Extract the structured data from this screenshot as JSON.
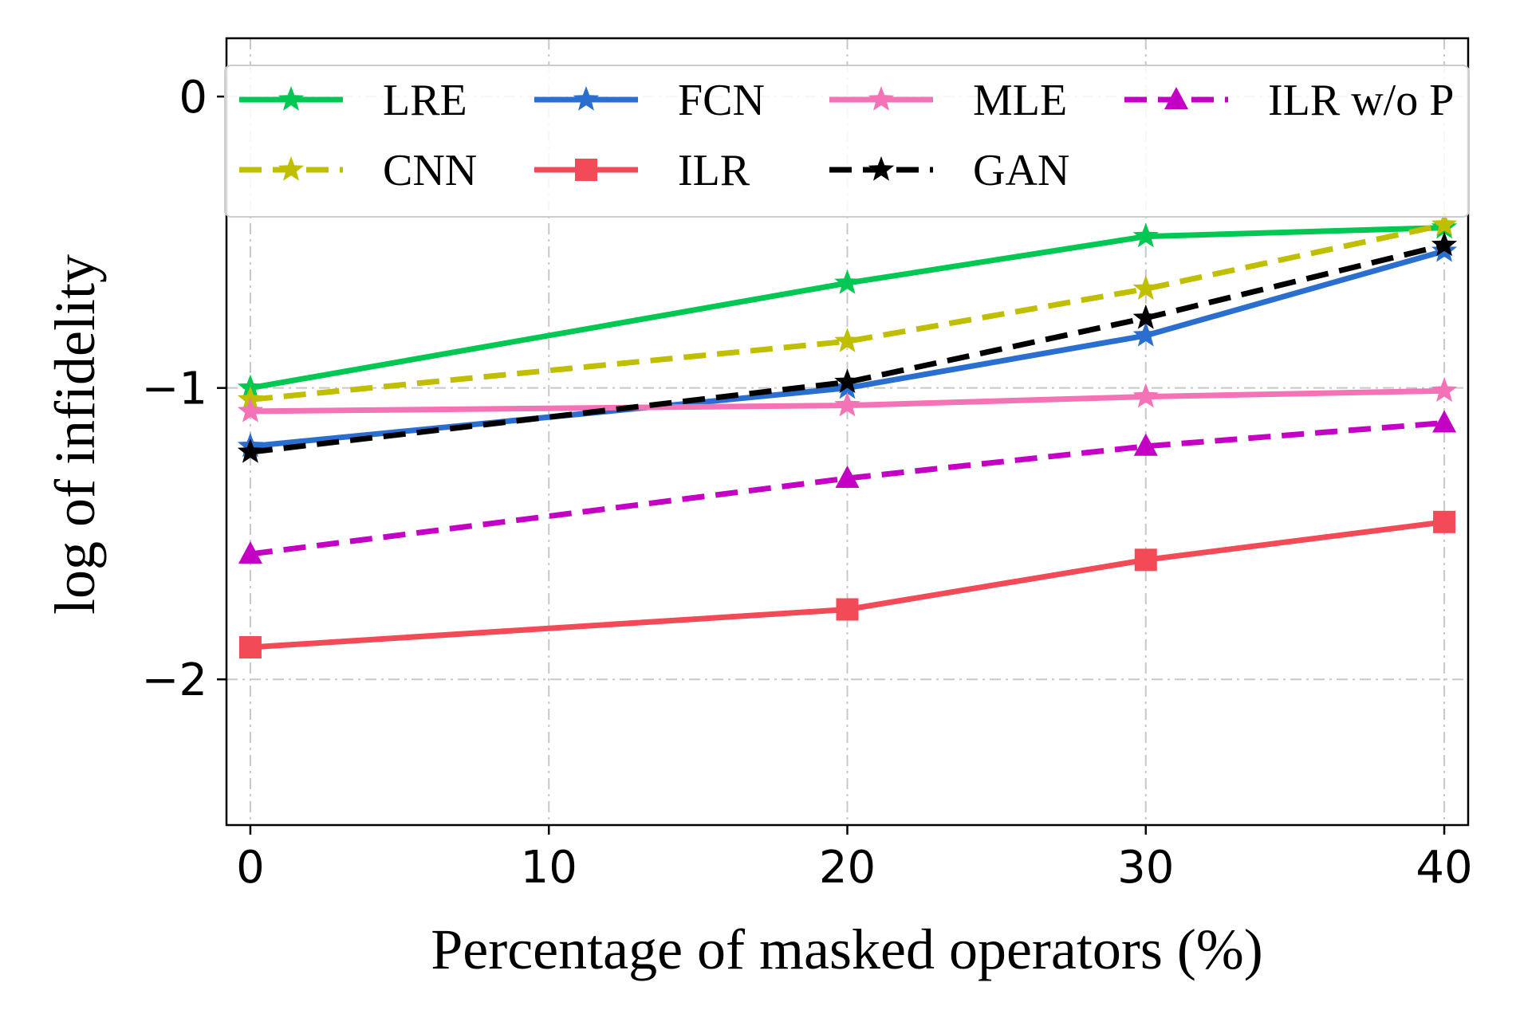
{
  "chart_data": {
    "type": "line",
    "title": "",
    "xlabel": "Percentage of masked operators (%)",
    "ylabel": "log of infidelity",
    "xlim": [
      -0.8,
      40.8
    ],
    "ylim": [
      -2.5,
      0.2
    ],
    "xticks": [
      0,
      10,
      20,
      30,
      40
    ],
    "xtick_labels": [
      "0",
      "10",
      "20",
      "30",
      "40"
    ],
    "yticks": [
      0,
      -1,
      -2
    ],
    "ytick_labels": [
      "0",
      "−1",
      "−2"
    ],
    "grid": true,
    "legend_position": "top",
    "x": [
      0,
      20,
      30,
      40
    ],
    "series": [
      {
        "name": "LRE",
        "color": "#00c853",
        "marker": "star",
        "dash": "solid",
        "values": [
          -1.0,
          -0.64,
          -0.48,
          -0.45
        ]
      },
      {
        "name": "CNN",
        "color": "#bfbf00",
        "marker": "star",
        "dash": "dashed",
        "values": [
          -1.04,
          -0.84,
          -0.66,
          -0.44
        ]
      },
      {
        "name": "FCN",
        "color": "#2a6fd0",
        "marker": "star",
        "dash": "solid",
        "values": [
          -1.2,
          -1.0,
          -0.82,
          -0.53
        ]
      },
      {
        "name": "ILR",
        "color": "#f24b57",
        "marker": "square",
        "dash": "solid",
        "values": [
          -1.89,
          -1.76,
          -1.59,
          -1.46
        ]
      },
      {
        "name": "MLE",
        "color": "#f472b6",
        "marker": "star",
        "dash": "solid",
        "values": [
          -1.08,
          -1.06,
          -1.03,
          -1.01
        ]
      },
      {
        "name": "GAN",
        "color": "#000000",
        "marker": "star",
        "dash": "dashed",
        "values": [
          -1.22,
          -0.98,
          -0.76,
          -0.51
        ]
      },
      {
        "name": "ILR w/o P",
        "color": "#c400c4",
        "marker": "triangle",
        "dash": "dashed",
        "values": [
          -1.57,
          -1.31,
          -1.2,
          -1.12
        ]
      }
    ]
  }
}
